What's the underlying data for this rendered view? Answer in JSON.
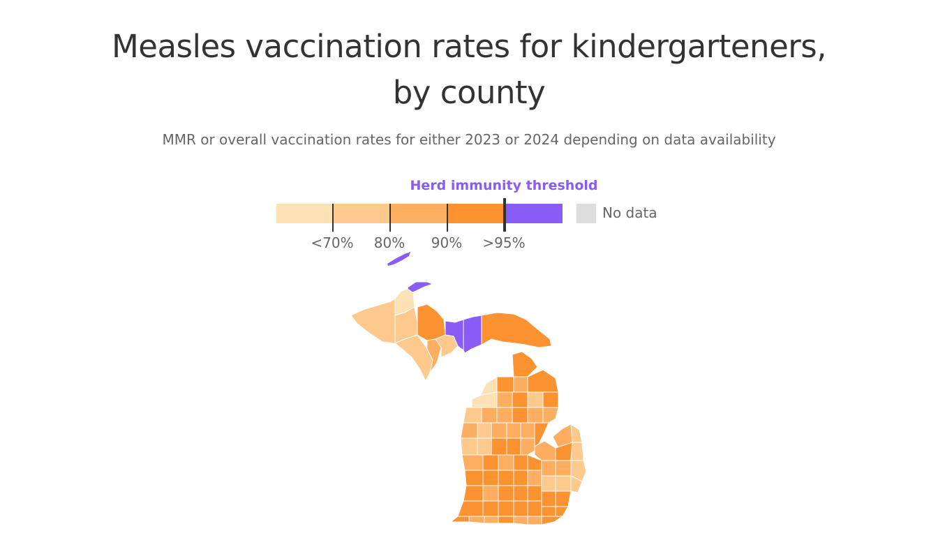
{
  "title_line1": "Measles vaccination rates for kindergarteners,",
  "title_line2": "by county",
  "subtitle": "MMR or overall vaccination rates for either 2023 or 2024 depending on data availability",
  "legend": {
    "threshold_label": "Herd immunity threshold",
    "bins": [
      {
        "label": "<70%",
        "color": "#fde2b6"
      },
      {
        "label": "80%",
        "color": "#fec98c"
      },
      {
        "label": "90%",
        "color": "#fdae60"
      },
      {
        "label": ">95%",
        "color": "#fd9231"
      },
      {
        "label": "",
        "color": "#8a5cf6"
      }
    ],
    "no_data_label": "No data",
    "no_data_color": "#dddddd"
  },
  "map": {
    "region": "Michigan counties",
    "colors": {
      "lt70": "#fde2b6",
      "70to80": "#fec98c",
      "80to90": "#fdae60",
      "90to95": "#fd9231",
      "gt95": "#8a5cf6"
    }
  }
}
